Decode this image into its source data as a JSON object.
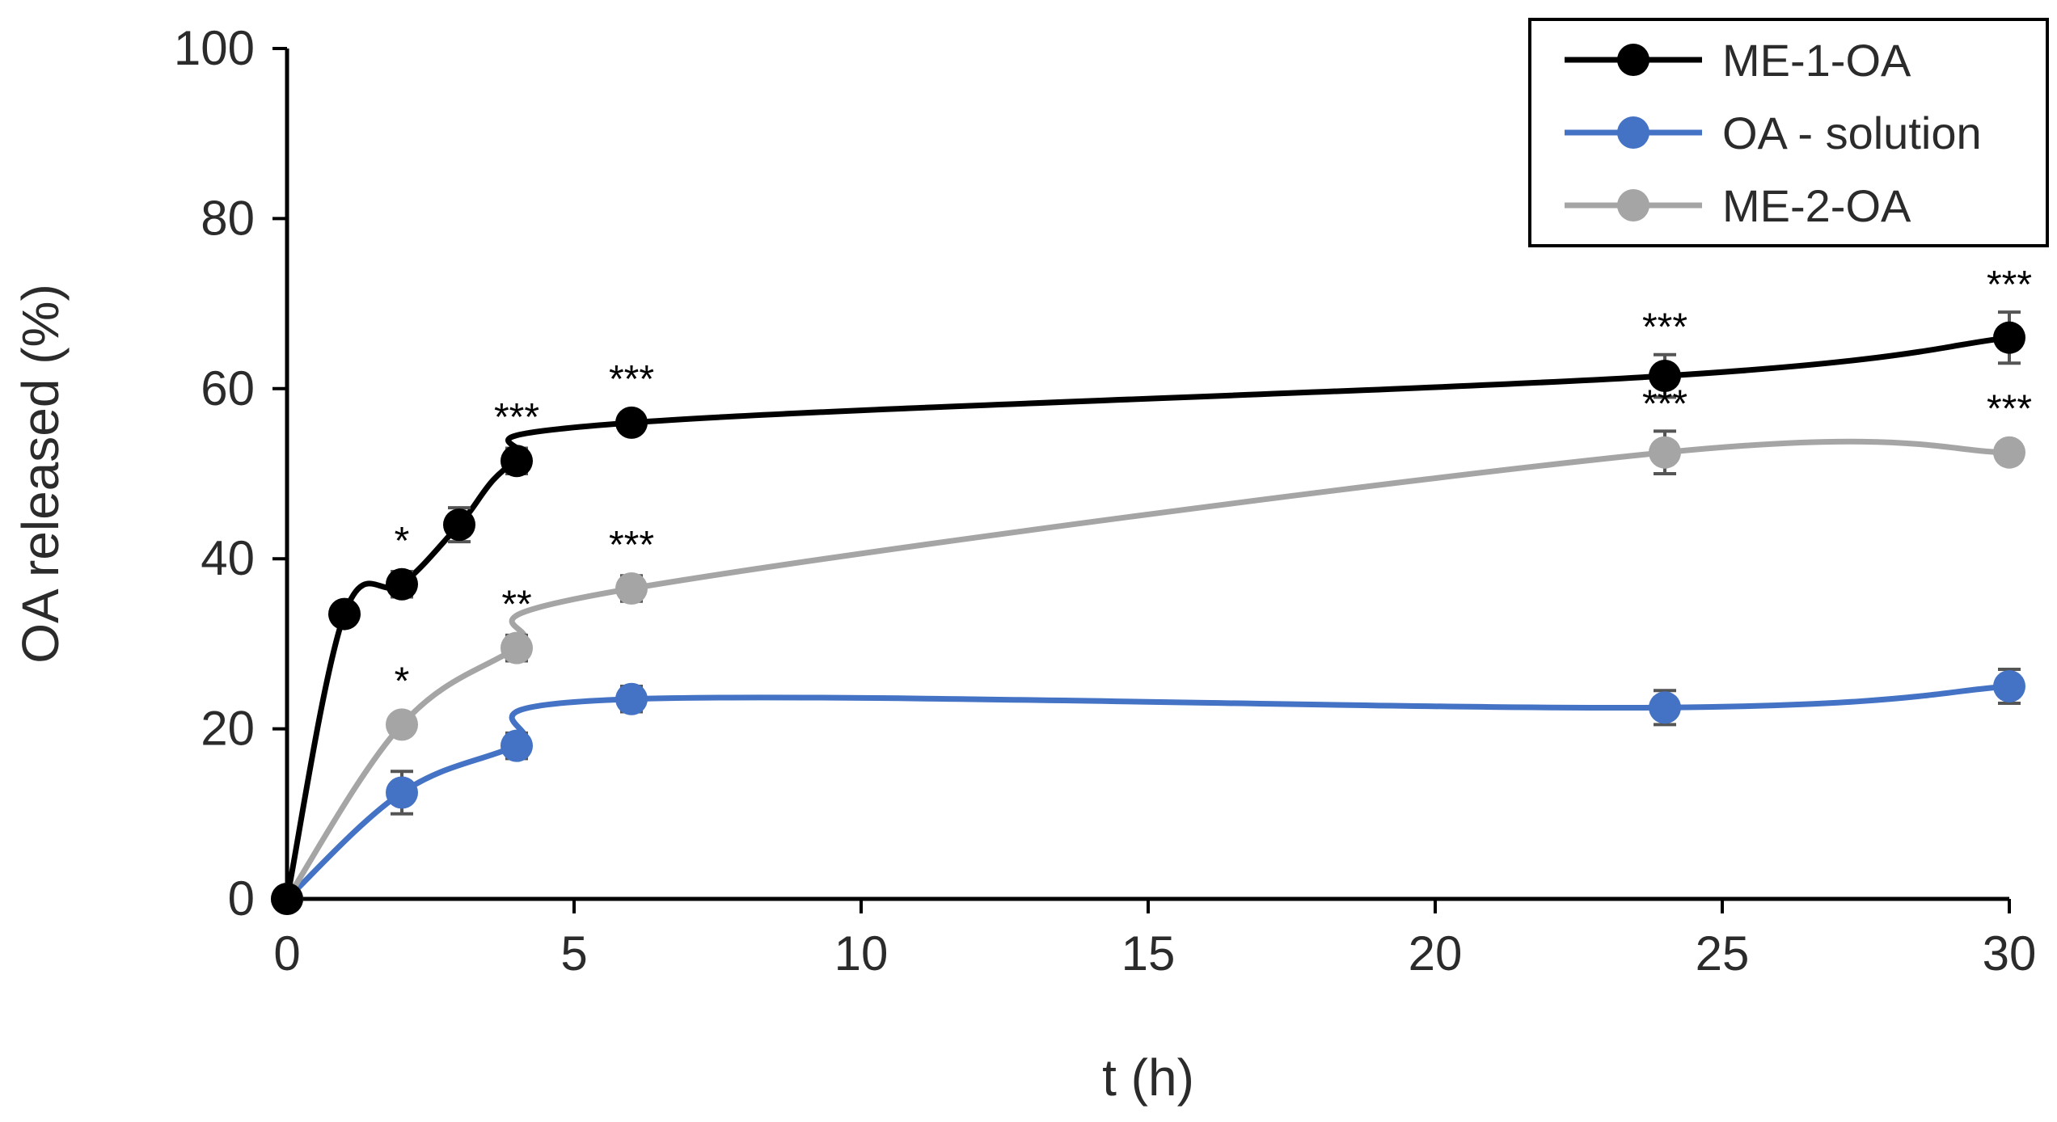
{
  "chart_data": {
    "type": "line",
    "title": "",
    "xlabel": "t (h)",
    "ylabel": "OA released (%)",
    "xlim": [
      0,
      30
    ],
    "ylim": [
      0,
      100
    ],
    "xticks": [
      0,
      5,
      10,
      15,
      20,
      25,
      30
    ],
    "yticks": [
      0,
      20,
      40,
      60,
      80,
      100
    ],
    "grid": false,
    "legend_position": "top-right",
    "smooth": true,
    "series": [
      {
        "name": "ME-1-OA",
        "color": "#000000",
        "x": [
          0,
          1,
          2,
          3,
          4,
          6,
          24,
          30
        ],
        "y": [
          0,
          33.5,
          37,
          44,
          51.5,
          56,
          61.5,
          66
        ],
        "error": [
          0,
          1,
          1.5,
          2,
          1.5,
          1,
          2.5,
          3
        ],
        "significance": [
          "",
          "",
          "*",
          "",
          "***",
          "***",
          "***",
          "***"
        ]
      },
      {
        "name": "OA - solution",
        "color": "#4472c4",
        "x": [
          0,
          2,
          4,
          6,
          24,
          30
        ],
        "y": [
          0,
          12.5,
          18,
          23.5,
          22.5,
          25
        ],
        "error": [
          0,
          2.5,
          1.5,
          1.5,
          2,
          2
        ],
        "significance": [
          "",
          "",
          "",
          "",
          "",
          ""
        ]
      },
      {
        "name": "ME-2-OA",
        "color": "#a5a5a5",
        "x": [
          0,
          2,
          4,
          6,
          24,
          30
        ],
        "y": [
          0,
          20.5,
          29.5,
          36.5,
          52.5,
          52.5
        ],
        "error": [
          0,
          1,
          1.5,
          1.5,
          2.5,
          1
        ],
        "significance": [
          "",
          "*",
          "**",
          "***",
          "***",
          "***"
        ]
      }
    ]
  }
}
